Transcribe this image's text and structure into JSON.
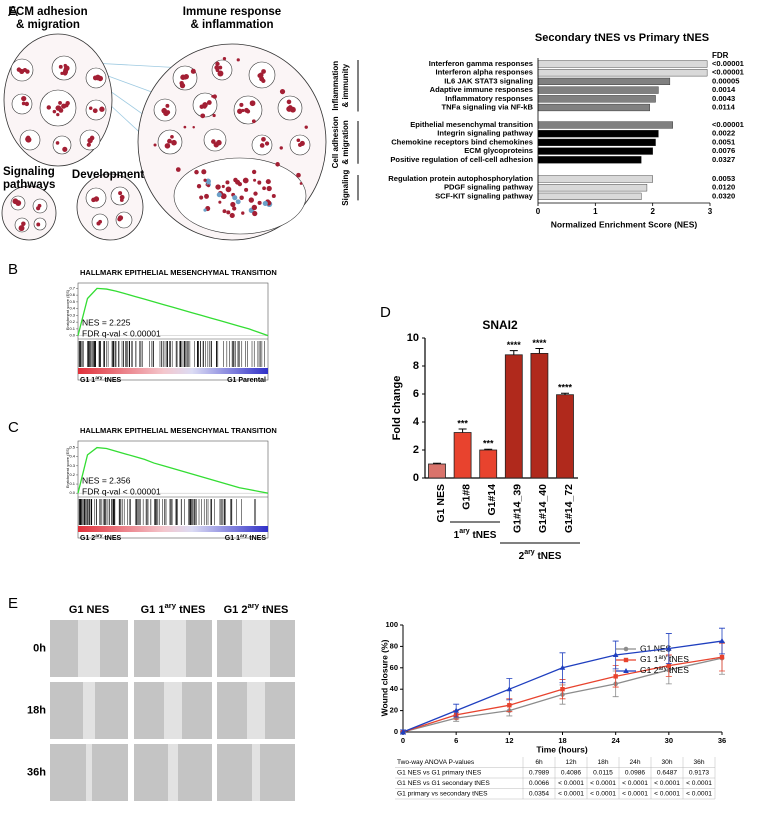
{
  "panel_labels": [
    "A",
    "B",
    "C",
    "D",
    "E"
  ],
  "network": {
    "clusters": [
      {
        "label_lines": [
          "ECM adhesion",
          "& migration"
        ]
      },
      {
        "label_lines": [
          "Immune response",
          "& inflammation"
        ]
      },
      {
        "label_lines": [
          "Signaling",
          "pathways"
        ]
      },
      {
        "label_lines": [
          "Development"
        ]
      }
    ]
  },
  "chart_data": [
    {
      "type": "barh",
      "title": "Secondary tNES vs Primary tNES",
      "fdr_header": "FDR",
      "xlabel": "Normalized Enrichment Score (NES)",
      "xlim": [
        0,
        3
      ],
      "xticks": [
        0,
        1,
        2,
        3
      ],
      "groups": [
        {
          "name_lines": [
            "Inflammation",
            "& immunity"
          ],
          "categories": [
            "Interferon gamma responses",
            "Interferon alpha responses",
            "IL6 JAK STAT3 signaling",
            "Adaptive immune responses",
            "Inflammatory responses",
            "TNFa signaling via NF-kB"
          ],
          "values": [
            2.95,
            2.95,
            2.3,
            2.1,
            2.05,
            1.95
          ],
          "colors": [
            "#d9d9d9",
            "#d9d9d9",
            "#808080",
            "#808080",
            "#808080",
            "#808080"
          ],
          "fdr": [
            "<0.00001",
            "<0.00001",
            "0.00005",
            "0.0014",
            "0.0043",
            "0.0114"
          ]
        },
        {
          "name_lines": [
            "Cell adhesion",
            "& migration"
          ],
          "categories": [
            "Epithelial mesenchymal transition",
            "Integrin signaling pathway",
            "Chemokine receptors bind chemokines",
            "ECM glycoproteins",
            "Positive regulation of cell-cell adhesion"
          ],
          "values": [
            2.35,
            2.1,
            2.05,
            2.0,
            1.8
          ],
          "colors": [
            "#808080",
            "#000000",
            "#000000",
            "#000000",
            "#000000"
          ],
          "fdr": [
            "<0.00001",
            "0.0022",
            "0.0051",
            "0.0076",
            "0.0327"
          ]
        },
        {
          "name_lines": [
            "Signaling"
          ],
          "categories": [
            "Regulation protein autophosphorylation",
            "PDGF signaling pathway",
            "SCF-KIT signaling pathway"
          ],
          "values": [
            2.0,
            1.9,
            1.8
          ],
          "colors": [
            "#d9d9d9",
            "#d9d9d9",
            "#d9d9d9"
          ],
          "fdr": [
            "0.0053",
            "0.0120",
            "0.0320"
          ]
        }
      ]
    },
    {
      "type": "gsea",
      "title": "HALLMARK EPITHELIAL MESENCHYMAL TRANSITION",
      "ylabel": "Enrichment score (ES)",
      "nes": "NES = 2.225",
      "fdr": "FDR q-val < 0.00001",
      "left_label": "G1 1ary tNES",
      "right_label": "G1 Parental",
      "color": "#33dd33",
      "ylim": [
        -0.02,
        0.75
      ],
      "yticks": [
        {
          "value": 0,
          "label": "0.0"
        },
        0.1,
        0.2,
        0.3,
        0.4,
        0.5,
        0.6,
        0.7
      ],
      "x": [
        0,
        5,
        10,
        15,
        20,
        25,
        30,
        35,
        40,
        45,
        50,
        55,
        60,
        65,
        70,
        75,
        80,
        85,
        90,
        95,
        100
      ],
      "values": [
        0,
        0.55,
        0.7,
        0.69,
        0.66,
        0.62,
        0.58,
        0.54,
        0.5,
        0.46,
        0.42,
        0.38,
        0.34,
        0.3,
        0.26,
        0.22,
        0.18,
        0.14,
        0.1,
        0.05,
        0
      ]
    },
    {
      "type": "gsea",
      "title": "HALLMARK EPITHELIAL MESENCHYMAL TRANSITION",
      "ylabel": "Enrichment score (ES)",
      "nes": "NES = 2.356",
      "fdr": "FDR q-val < 0.00001",
      "left_label": "G1 2ary tNES",
      "right_label": "G1 1ary tNES",
      "color": "#33dd33",
      "ylim": [
        -0.02,
        0.55
      ],
      "yticks": [
        {
          "value": 0,
          "label": "0.0"
        },
        0.1,
        0.2,
        0.3,
        0.4,
        0.5
      ],
      "x": [
        0,
        5,
        10,
        15,
        20,
        25,
        30,
        35,
        40,
        45,
        50,
        55,
        60,
        65,
        70,
        75,
        80,
        85,
        90,
        95,
        100
      ],
      "values": [
        0,
        0.42,
        0.5,
        0.49,
        0.46,
        0.43,
        0.4,
        0.37,
        0.33,
        0.3,
        0.27,
        0.24,
        0.21,
        0.18,
        0.15,
        0.12,
        0.09,
        0.06,
        0.04,
        0.02,
        0
      ]
    },
    {
      "type": "bar",
      "title": "SNAI2",
      "ylabel": "Fold change",
      "categories": [
        "G1 NES",
        "G1#8",
        "G1#14",
        "G1#14_39",
        "G1#14_40",
        "G1#14_72"
      ],
      "values": [
        1,
        3.25,
        2,
        8.8,
        8.9,
        5.95
      ],
      "errors": [
        0.05,
        0.25,
        0.05,
        0.3,
        0.35,
        0.1
      ],
      "colors": [
        "#d9736b",
        "#e8432e",
        "#e8432e",
        "#b0291c",
        "#b0291c",
        "#b0291c"
      ],
      "annotations": [
        null,
        "***",
        "***",
        "****",
        "****",
        "****"
      ],
      "groups": [
        "1ary tNES",
        "2ary tNES"
      ],
      "ylim": [
        0,
        10
      ],
      "yticks": [
        0,
        2,
        4,
        6,
        8,
        10
      ]
    },
    {
      "type": "line",
      "xlabel": "Time (hours)",
      "ylabel": "Wound closure (%)",
      "x": [
        0,
        6,
        12,
        18,
        24,
        30,
        36
      ],
      "xlim": [
        0,
        36
      ],
      "xticks": [
        0,
        6,
        12,
        18,
        24,
        30,
        36
      ],
      "ylim": [
        0,
        100
      ],
      "yticks": [
        0,
        20,
        40,
        60,
        80,
        100
      ],
      "series": [
        {
          "name": "G1 NES",
          "color": "#8c8c8c",
          "marker": "circle",
          "values": [
            0,
            13,
            20,
            35,
            45,
            58,
            69
          ],
          "errors": [
            2,
            3,
            5,
            9,
            12,
            13,
            15
          ]
        },
        {
          "name": "G1 1ary tNES",
          "color": "#e8432e",
          "marker": "square",
          "values": [
            0,
            16,
            25,
            40,
            52,
            62,
            70
          ],
          "errors": [
            2,
            4,
            6,
            9,
            10,
            10,
            13
          ]
        },
        {
          "name": "G1 2ary tNES",
          "color": "#1f3fbf",
          "marker": "triangle",
          "values": [
            0,
            20,
            40,
            60,
            72,
            78,
            85
          ],
          "errors": [
            2,
            6,
            10,
            14,
            13,
            14,
            12
          ]
        }
      ]
    }
  ],
  "wound_assay": {
    "columns": [
      "G1 NES",
      "G1 1ary tNES",
      "G1  2ary tNES"
    ],
    "rows": [
      "0h",
      "18h",
      "36h"
    ]
  },
  "anova_table": {
    "header": [
      "Two-way ANOVA P-values",
      "6h",
      "12h",
      "18h",
      "24h",
      "30h",
      "36h"
    ],
    "rows": [
      [
        "G1 NES vs G1 primary tNES",
        "0.7989",
        "0.4086",
        "0.0115",
        "0.0986",
        "0.6487",
        "0.9173"
      ],
      [
        "G1 NES vs G1 secondary tNES",
        "0.0066",
        "< 0.0001",
        "< 0.0001",
        "< 0.0001",
        "< 0.0001",
        "< 0.0001"
      ],
      [
        "G1 primary vs secondary tNES",
        "0.0354",
        "< 0.0001",
        "< 0.0001",
        "< 0.0001",
        "< 0.0001",
        "< 0.0001"
      ]
    ]
  }
}
